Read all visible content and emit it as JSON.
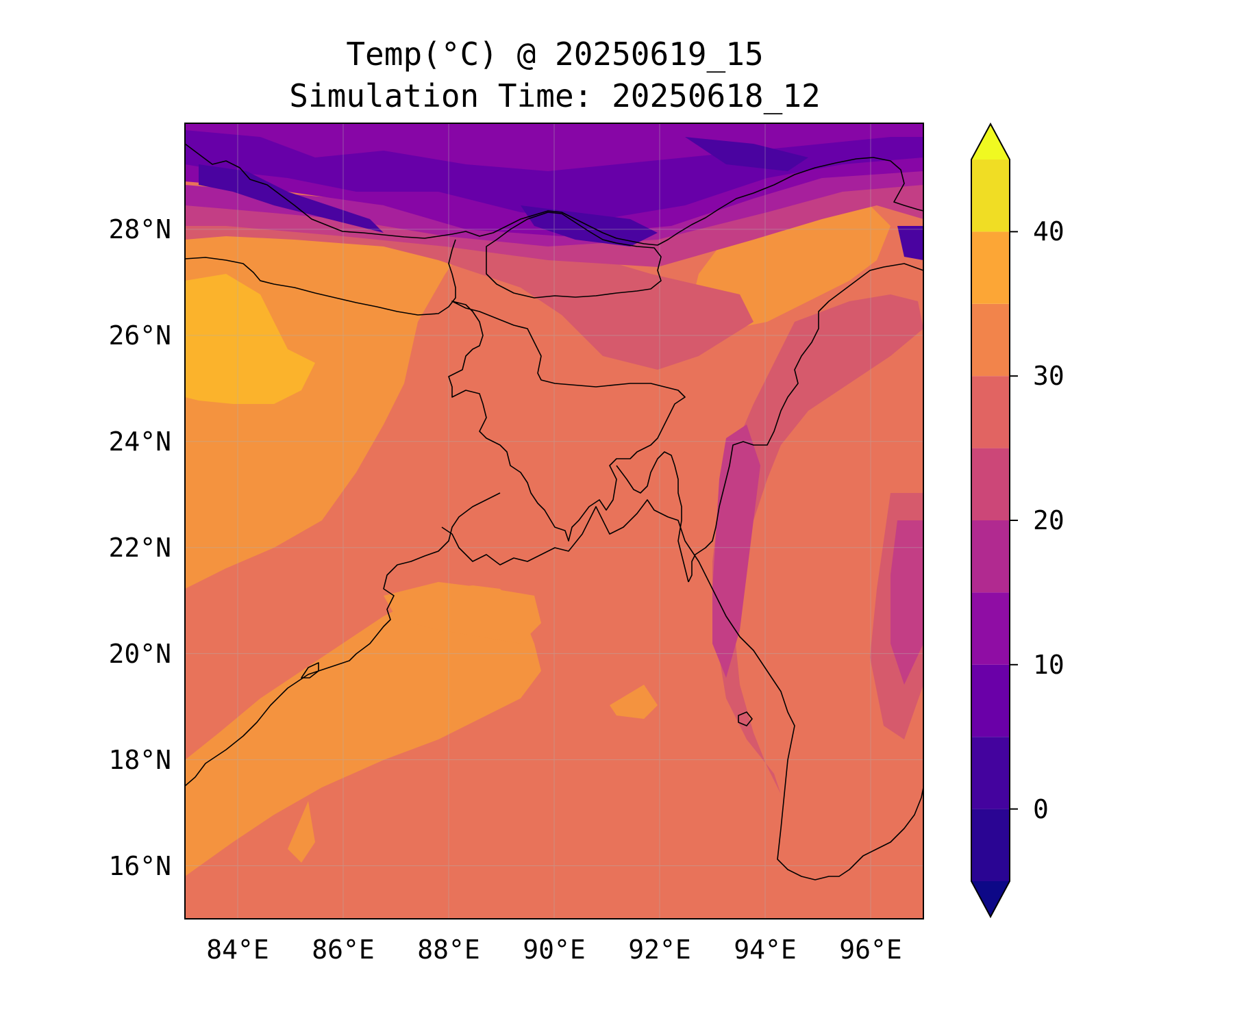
{
  "title": {
    "line1": "Temp(°C) @ 20250619_15",
    "line2": "Simulation Time: 20250618_12"
  },
  "map": {
    "lon_range": [
      83,
      97
    ],
    "lat_range": [
      15,
      30
    ],
    "lat_ticks": [
      {
        "value": 28,
        "label": "28°N"
      },
      {
        "value": 26,
        "label": "26°N"
      },
      {
        "value": 24,
        "label": "24°N"
      },
      {
        "value": 22,
        "label": "22°N"
      },
      {
        "value": 20,
        "label": "20°N"
      },
      {
        "value": 18,
        "label": "18°N"
      },
      {
        "value": 16,
        "label": "16°N"
      }
    ],
    "lon_ticks": [
      {
        "value": 84,
        "label": "84°E"
      },
      {
        "value": 86,
        "label": "86°E"
      },
      {
        "value": 88,
        "label": "88°E"
      },
      {
        "value": 90,
        "label": "90°E"
      },
      {
        "value": 92,
        "label": "92°E"
      },
      {
        "value": 94,
        "label": "94°E"
      },
      {
        "value": 96,
        "label": "96°E"
      }
    ],
    "gridlines": true
  },
  "colorbar": {
    "levels": [
      -5,
      0,
      5,
      10,
      15,
      20,
      25,
      30,
      35,
      40,
      45
    ],
    "colors": [
      "#2a0593",
      "#44039e",
      "#6a00a8",
      "#8f0da4",
      "#b12a90",
      "#cc4778",
      "#e16462",
      "#f2844b",
      "#fca636",
      "#f0dd24"
    ],
    "under_color": "#0d0887",
    "over_color": "#f0f921",
    "extend": "both",
    "ticks": [
      {
        "value": 0,
        "label": "0"
      },
      {
        "value": 10,
        "label": "10"
      },
      {
        "value": 20,
        "label": "20"
      },
      {
        "value": 30,
        "label": "30"
      },
      {
        "value": 40,
        "label": "40"
      }
    ]
  },
  "field_colors": {
    "t28_32": "#e8735a",
    "t32_36": "#f4933f",
    "t36_40": "#fbb32c",
    "t24_28": "#d65a6c",
    "t20_24": "#c33e85",
    "t16_20": "#a7209c",
    "t12_16": "#8706a6",
    "t8_12": "#6700a8",
    "t4_8": "#4a03a0"
  }
}
